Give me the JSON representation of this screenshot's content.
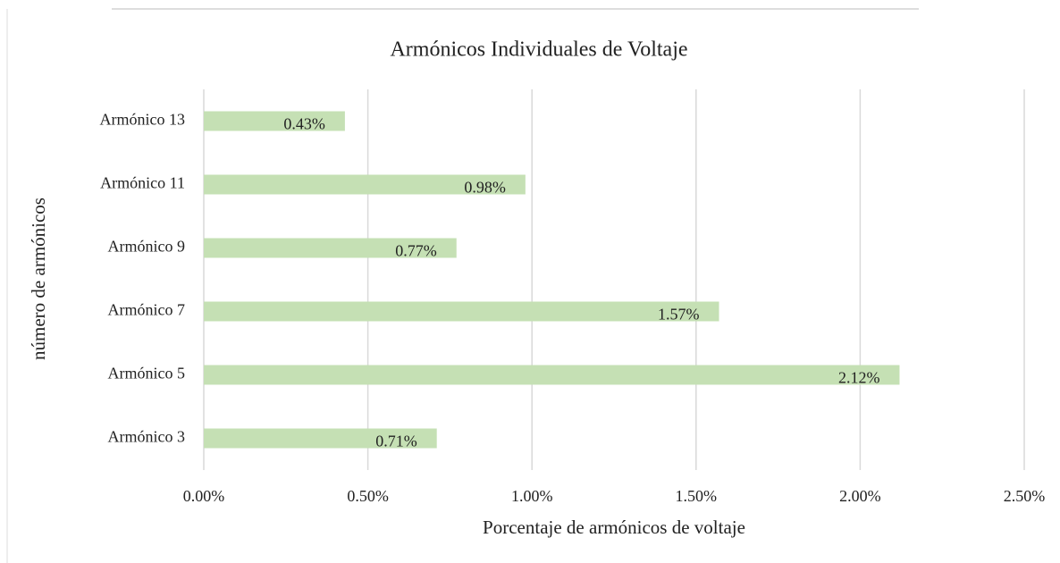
{
  "chart_data": {
    "type": "bar",
    "orientation": "horizontal",
    "title": "Armónicos Individuales de Voltaje",
    "xlabel": "Porcentaje de armónicos de voltaje",
    "ylabel": "número de armónicos",
    "categories": [
      "Armónico 13",
      "Armónico 11",
      "Armónico 9",
      "Armónico 7",
      "Armónico 5",
      "Armónico 3"
    ],
    "values": [
      0.43,
      0.98,
      0.77,
      1.57,
      2.12,
      0.71
    ],
    "value_labels": [
      "0.43%",
      "0.98%",
      "0.77%",
      "1.57%",
      "2.12%",
      "0.71%"
    ],
    "color": "#c5e0b4",
    "xlim": [
      0,
      2.5
    ],
    "xticks": [
      {
        "value": 0,
        "label": "0.00%"
      },
      {
        "value": 0.5,
        "label": "0.50%"
      },
      {
        "value": 1,
        "label": "1.00%"
      },
      {
        "value": 1.5,
        "label": "1.50%"
      },
      {
        "value": 2,
        "label": "2.00%"
      },
      {
        "value": 2.5,
        "label": "2.50%"
      }
    ],
    "grid": true
  }
}
